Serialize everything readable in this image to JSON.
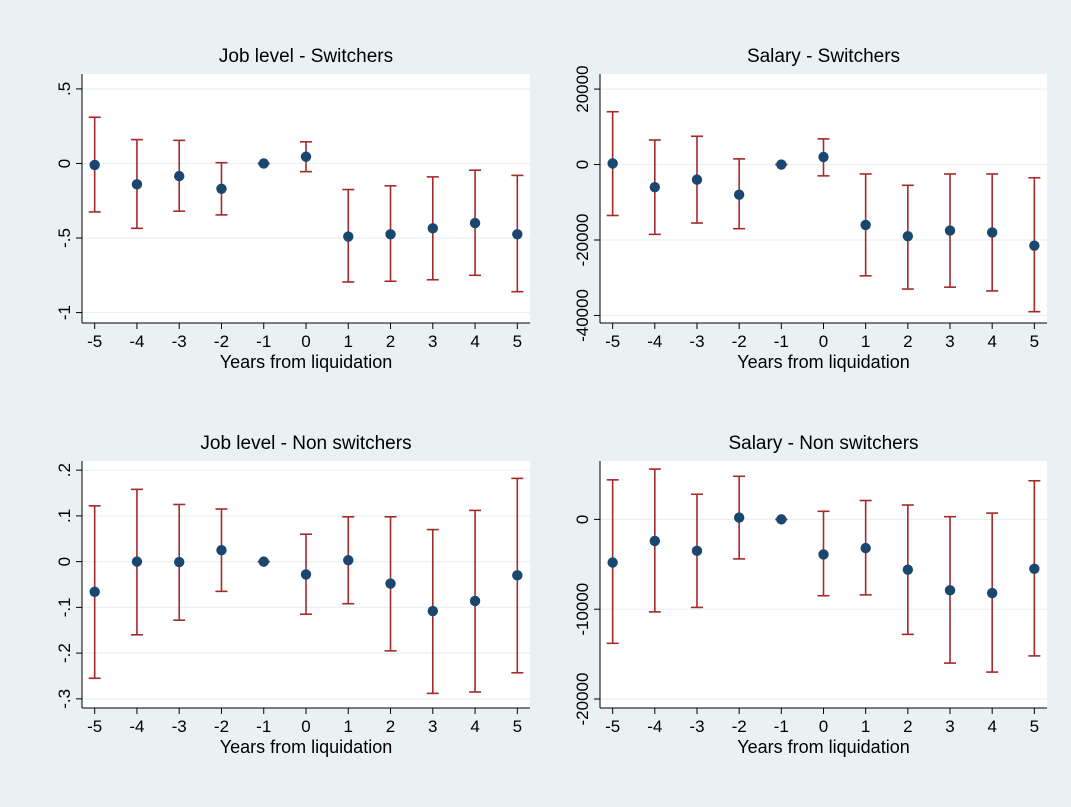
{
  "chart_data": [
    {
      "type": "scatter",
      "title": "Job level - Switchers",
      "xlabel": "Years from liquidation",
      "ylabel": "",
      "x": [
        -5,
        -4,
        -3,
        -2,
        -1,
        0,
        1,
        2,
        3,
        4,
        5
      ],
      "xlim": [
        -5.3,
        5.3
      ],
      "ylim": [
        -1.07,
        0.6
      ],
      "yticks": [
        0.5,
        0,
        -0.5,
        -1
      ],
      "ytick_labels": [
        ".5",
        "0",
        "-.5",
        "-1"
      ],
      "grid": true,
      "legend": "none",
      "estimate": [
        -0.01,
        -0.14,
        -0.085,
        -0.17,
        0.0,
        0.045,
        -0.49,
        -0.475,
        -0.435,
        -0.4,
        -0.475
      ],
      "ci_low": [
        -0.325,
        -0.435,
        -0.32,
        -0.345,
        0.0,
        -0.055,
        -0.795,
        -0.79,
        -0.78,
        -0.75,
        -0.86
      ],
      "ci_high": [
        0.31,
        0.16,
        0.155,
        0.005,
        0.0,
        0.145,
        -0.175,
        -0.15,
        -0.09,
        -0.045,
        -0.08
      ]
    },
    {
      "type": "scatter",
      "title": "Salary - Switchers",
      "xlabel": "Years from liquidation",
      "ylabel": "",
      "x": [
        -5,
        -4,
        -3,
        -2,
        -1,
        0,
        1,
        2,
        3,
        4,
        5
      ],
      "xlim": [
        -5.3,
        5.3
      ],
      "ylim": [
        -42000,
        24000
      ],
      "yticks": [
        20000,
        0,
        -20000,
        -40000
      ],
      "ytick_labels": [
        "20000",
        "0",
        "-20000",
        "-40000"
      ],
      "grid": true,
      "legend": "none",
      "estimate": [
        300,
        -6000,
        -4000,
        -8000,
        0,
        2000,
        -16000,
        -19000,
        -17500,
        -18000,
        -21500
      ],
      "ci_low": [
        -13500,
        -18500,
        -15500,
        -17000,
        0,
        -3000,
        -29500,
        -33000,
        -32500,
        -33500,
        -39000
      ],
      "ci_high": [
        14000,
        6500,
        7500,
        1500,
        0,
        6800,
        -2500,
        -5500,
        -2500,
        -2500,
        -3500
      ]
    },
    {
      "type": "scatter",
      "title": "Job level - Non switchers",
      "xlabel": "Years from liquidation",
      "ylabel": "",
      "x": [
        -5,
        -4,
        -3,
        -2,
        -1,
        0,
        1,
        2,
        3,
        4,
        5
      ],
      "xlim": [
        -5.3,
        5.3
      ],
      "ylim": [
        -0.32,
        0.22
      ],
      "yticks": [
        0.2,
        0.1,
        0,
        -0.1,
        -0.2,
        -0.3
      ],
      "ytick_labels": [
        ".2",
        ".1",
        "0",
        "-.1",
        "-.2",
        "-.3"
      ],
      "grid": true,
      "legend": "none",
      "estimate": [
        -0.066,
        0.0,
        -0.001,
        0.025,
        0.0,
        -0.028,
        0.003,
        -0.048,
        -0.108,
        -0.086,
        -0.03
      ],
      "ci_low": [
        -0.255,
        -0.16,
        -0.128,
        -0.065,
        0.0,
        -0.115,
        -0.092,
        -0.195,
        -0.288,
        -0.285,
        -0.243
      ],
      "ci_high": [
        0.122,
        0.158,
        0.125,
        0.115,
        0.0,
        0.06,
        0.098,
        0.098,
        0.07,
        0.112,
        0.182
      ]
    },
    {
      "type": "scatter",
      "title": "Salary - Non switchers",
      "xlabel": "Years from liquidation",
      "ylabel": "",
      "x": [
        -5,
        -4,
        -3,
        -2,
        -1,
        0,
        1,
        2,
        3,
        4,
        5
      ],
      "xlim": [
        -5.3,
        5.3
      ],
      "ylim": [
        -21000,
        6500
      ],
      "yticks": [
        0,
        -10000,
        -20000
      ],
      "ytick_labels": [
        "0",
        "-10000",
        "-20000"
      ],
      "grid": true,
      "legend": "none",
      "estimate": [
        -4800,
        -2400,
        -3500,
        200,
        0,
        -3900,
        -3200,
        -5600,
        -7900,
        -8200,
        -5500
      ],
      "ci_low": [
        -13800,
        -10300,
        -9800,
        -4400,
        0,
        -8500,
        -8400,
        -12800,
        -16000,
        -17000,
        -15200
      ],
      "ci_high": [
        4400,
        5600,
        2800,
        4800,
        0,
        900,
        2100,
        1600,
        300,
        700,
        4300
      ]
    }
  ]
}
